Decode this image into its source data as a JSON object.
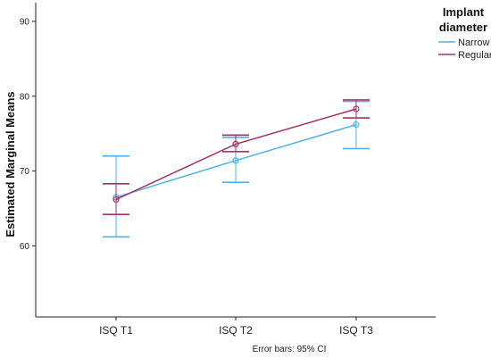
{
  "chart_data": {
    "type": "line",
    "categories": [
      "ISQ T1",
      "ISQ T2",
      "ISQ T3"
    ],
    "ylabel": "Estimated Marginal Means",
    "ylim": [
      50.5,
      92.5
    ],
    "yticks": [
      60,
      70,
      80,
      90
    ],
    "legend": {
      "title_line1": "Implant",
      "title_line2": "diameter",
      "placement": "top-right"
    },
    "series": [
      {
        "name": "Narrow",
        "color": "#4db3ec",
        "values": [
          66.5,
          71.4,
          76.2
        ],
        "ci_low": [
          61.2,
          68.5,
          73.0
        ],
        "ci_high": [
          72.0,
          74.5,
          79.3
        ]
      },
      {
        "name": "Regular",
        "color": "#a3306a",
        "values": [
          66.2,
          73.6,
          78.3
        ],
        "ci_low": [
          64.2,
          72.6,
          77.1
        ],
        "ci_high": [
          68.3,
          74.8,
          79.5
        ]
      }
    ],
    "footnote": "Error bars: 95% CI"
  }
}
